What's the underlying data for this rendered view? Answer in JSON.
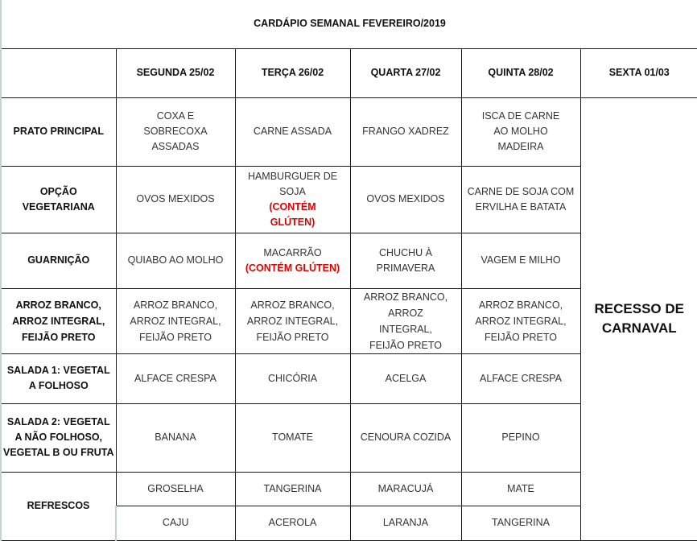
{
  "title": "CARDÁPIO SEMANAL FEVEREIRO/2019",
  "days": [
    "SEGUNDA 25/02",
    "TERÇA 26/02",
    "QUARTA 27/02",
    "QUINTA 28/02",
    "SEXTA 01/03"
  ],
  "friday_note": "RECESSO DE CARNAVAL",
  "rows": {
    "prato": {
      "label": "PRATO PRINCIPAL",
      "cells": [
        "COXA E SOBRECOXA ASSADAS",
        "CARNE ASSADA",
        "FRANGO XADREZ",
        "ISCA DE CARNE AO MOLHO MADEIRA"
      ]
    },
    "veg": {
      "label": "OPÇÃO VEGETARIANA",
      "cells": [
        "OVOS MEXIDOS",
        "HAMBURGUER DE SOJA",
        "OVOS MEXIDOS",
        "CARNE DE SOJA COM ERVILHA E BATATA"
      ],
      "warning": "(CONTÉM GLÚTEN)"
    },
    "guarn": {
      "label": "GUARNIÇÃO",
      "cells": [
        "QUIABO AO MOLHO",
        "MACARRÃO",
        "CHUCHU À PRIMAVERA",
        "VAGEM E MILHO"
      ],
      "warning": "(CONTÉM GLÚTEN)"
    },
    "arroz": {
      "label": "ARROZ BRANCO, ARROZ INTEGRAL, FEIJÃO PRETO",
      "cells": [
        "ARROZ BRANCO, ARROZ INTEGRAL, FEIJÃO PRETO",
        "ARROZ BRANCO, ARROZ INTEGRAL, FEIJÃO PRETO",
        "ARROZ BRANCO, ARROZ INTEGRAL, FEIJÃO PRETO",
        "ARROZ BRANCO, ARROZ INTEGRAL, FEIJÃO PRETO"
      ]
    },
    "salada1": {
      "label": "SALADA 1: VEGETAL A FOLHOSO",
      "cells": [
        "ALFACE CRESPA",
        "CHICÓRIA",
        "ACELGA",
        "ALFACE CRESPA"
      ]
    },
    "salada2": {
      "label": "SALADA 2: VEGETAL A NÃO FOLHOSO, VEGETAL B OU FRUTA",
      "cells": [
        "BANANA",
        "TOMATE",
        "CENOURA COZIDA",
        "PEPINO"
      ]
    },
    "refrescos": {
      "label": "REFRESCOS",
      "cells1": [
        "GROSELHA",
        "TANGERINA",
        "MARACUJÁ",
        "MATE"
      ],
      "cells2": [
        "CAJU",
        "ACEROLA",
        "LARANJA",
        "TANGERINA"
      ]
    }
  },
  "colors": {
    "warning": "#e00000",
    "border": "#1a1a1a"
  }
}
